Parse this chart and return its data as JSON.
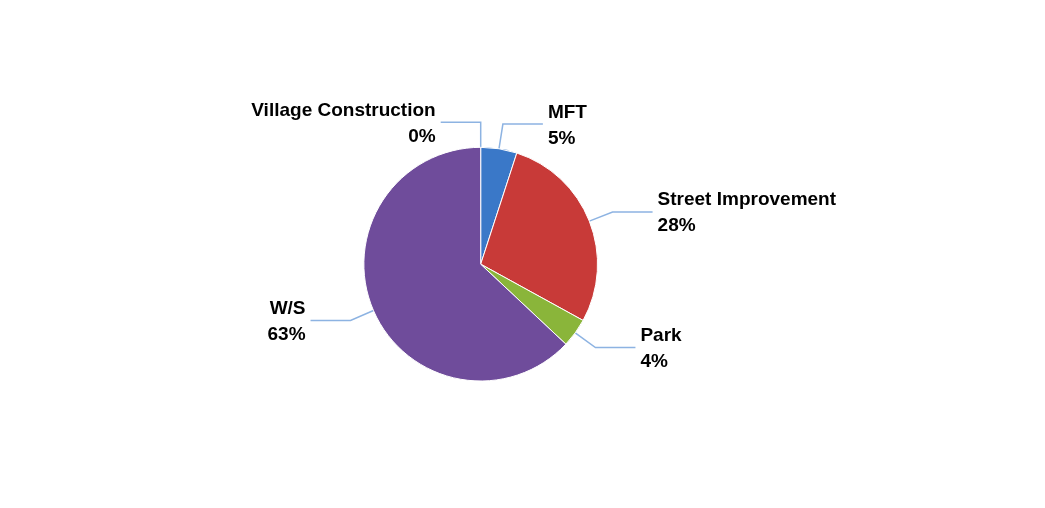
{
  "chart_data": {
    "type": "pie",
    "categories": [
      "Village Construction",
      "MFT",
      "Street Improvement",
      "Park",
      "W/S"
    ],
    "values": [
      0,
      5,
      28,
      4,
      63
    ],
    "value_labels": [
      "0%",
      "5%",
      "28%",
      "4%",
      "63%"
    ],
    "colors": [
      "#4f81bd",
      "#3a78c8",
      "#c83a38",
      "#8ab53a",
      "#6f4c9b"
    ],
    "legend": false
  }
}
